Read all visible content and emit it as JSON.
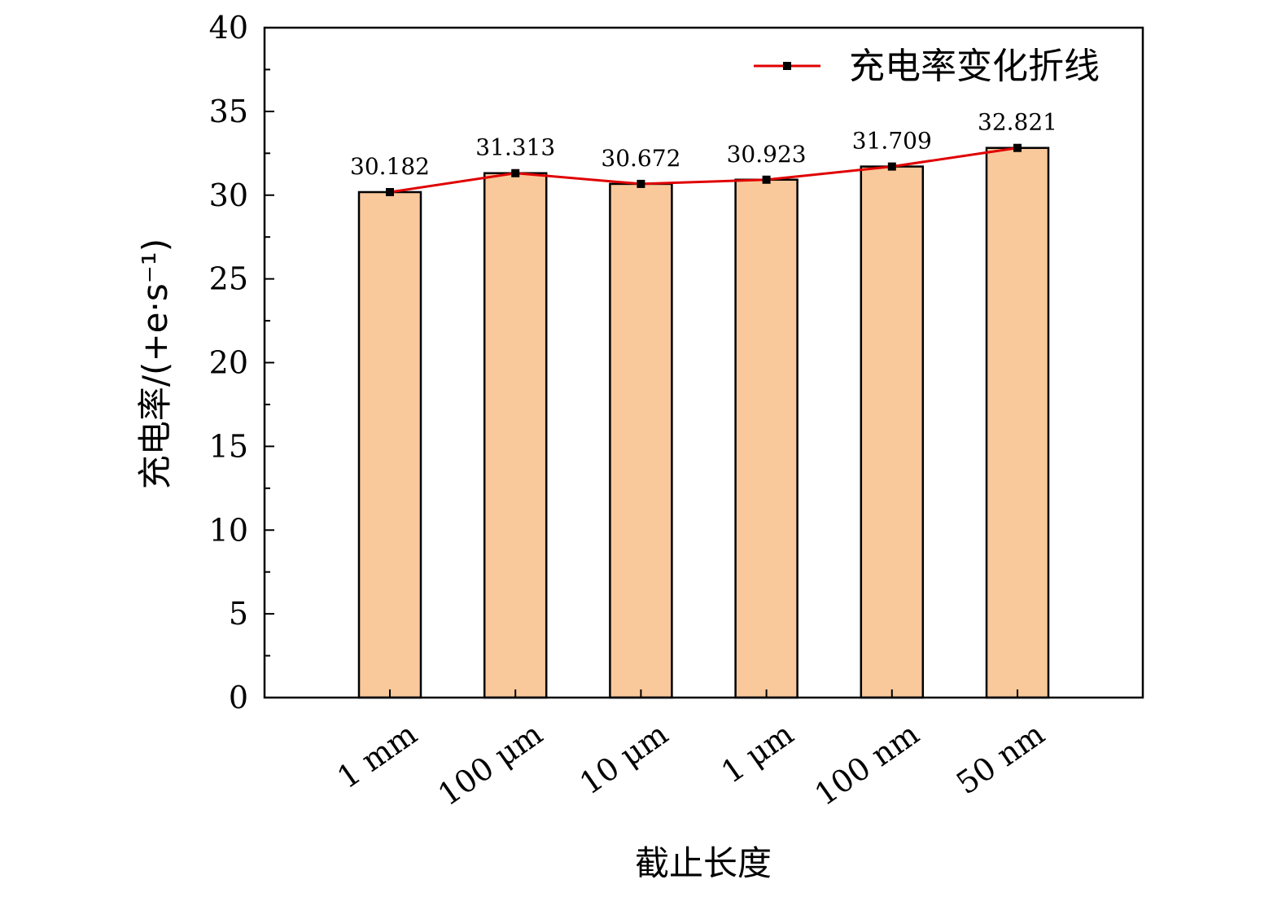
{
  "chart_data": {
    "type": "bar",
    "categories": [
      "1 mm",
      "100 μm",
      "10 μm",
      "1 μm",
      "100 nm",
      "50 nm"
    ],
    "values": [
      30.182,
      31.313,
      30.672,
      30.923,
      31.709,
      32.821
    ],
    "data_labels": [
      "30.182",
      "31.313",
      "30.672",
      "30.923",
      "31.709",
      "32.821"
    ],
    "overlay_line": {
      "name": "充电率变化折线",
      "values": [
        30.182,
        31.313,
        30.672,
        30.923,
        31.709,
        32.821
      ]
    },
    "xlabel": "截止长度",
    "ylabel": "充电率/(+e·s⁻¹)",
    "ylim": [
      0,
      40
    ],
    "yticks": [
      0,
      5,
      10,
      15,
      20,
      25,
      30,
      35,
      40
    ],
    "ytick_labels": [
      "0",
      "5",
      "10",
      "15",
      "20",
      "25",
      "30",
      "35",
      "40"
    ],
    "grid": false,
    "legend_position": "top-right",
    "colors": {
      "bar_fill": "#F9C89B",
      "bar_stroke": "#000000",
      "line": "#E00000",
      "marker": "#000000"
    }
  }
}
